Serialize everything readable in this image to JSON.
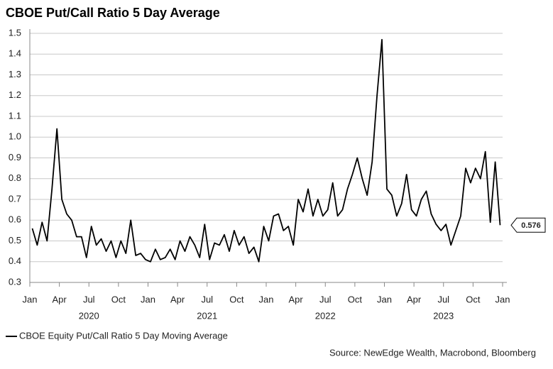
{
  "chart_data": {
    "type": "line",
    "title": "CBOE Put/Call Ratio 5 Day Average",
    "source": "Source: NewEdge Wealth, Macrobond, Bloomberg",
    "x": [
      "2020-01",
      "2020-01",
      "2020-02",
      "2020-02",
      "2020-03",
      "2020-03",
      "2020-04",
      "2020-04",
      "2020-05",
      "2020-05",
      "2020-06",
      "2020-06",
      "2020-07",
      "2020-07",
      "2020-08",
      "2020-08",
      "2020-09",
      "2020-09",
      "2020-10",
      "2020-10",
      "2020-11",
      "2020-11",
      "2020-12",
      "2020-12",
      "2021-01",
      "2021-01",
      "2021-02",
      "2021-02",
      "2021-03",
      "2021-03",
      "2021-04",
      "2021-04",
      "2021-05",
      "2021-05",
      "2021-06",
      "2021-06",
      "2021-07",
      "2021-07",
      "2021-08",
      "2021-08",
      "2021-09",
      "2021-09",
      "2021-10",
      "2021-10",
      "2021-11",
      "2021-11",
      "2021-12",
      "2021-12",
      "2022-01",
      "2022-01",
      "2022-02",
      "2022-02",
      "2022-03",
      "2022-03",
      "2022-04",
      "2022-04",
      "2022-05",
      "2022-05",
      "2022-06",
      "2022-06",
      "2022-07",
      "2022-07",
      "2022-08",
      "2022-08",
      "2022-09",
      "2022-09",
      "2022-10",
      "2022-10",
      "2022-11",
      "2022-11",
      "2022-12",
      "2022-12",
      "2023-01",
      "2023-01",
      "2023-02",
      "2023-02",
      "2023-03",
      "2023-03",
      "2023-04",
      "2023-04",
      "2023-05",
      "2023-05",
      "2023-06",
      "2023-06",
      "2023-07",
      "2023-07",
      "2023-08",
      "2023-08",
      "2023-09",
      "2023-09",
      "2023-10",
      "2023-10",
      "2023-11",
      "2023-11",
      "2023-12",
      "2023-12"
    ],
    "series": [
      {
        "name": "CBOE Equity Put/Call Ratio 5 Day Moving Average",
        "color": "#000000",
        "values": [
          0.56,
          0.48,
          0.59,
          0.5,
          0.75,
          1.04,
          0.7,
          0.63,
          0.6,
          0.52,
          0.52,
          0.42,
          0.57,
          0.48,
          0.51,
          0.45,
          0.5,
          0.42,
          0.5,
          0.44,
          0.6,
          0.43,
          0.44,
          0.41,
          0.4,
          0.46,
          0.41,
          0.42,
          0.46,
          0.41,
          0.5,
          0.45,
          0.52,
          0.48,
          0.42,
          0.58,
          0.41,
          0.49,
          0.48,
          0.53,
          0.45,
          0.55,
          0.48,
          0.52,
          0.44,
          0.47,
          0.4,
          0.57,
          0.5,
          0.62,
          0.63,
          0.55,
          0.57,
          0.48,
          0.7,
          0.64,
          0.75,
          0.62,
          0.7,
          0.62,
          0.65,
          0.78,
          0.62,
          0.65,
          0.75,
          0.82,
          0.9,
          0.8,
          0.72,
          0.88,
          1.2,
          1.47,
          0.75,
          0.72,
          0.62,
          0.68,
          0.82,
          0.65,
          0.62,
          0.7,
          0.74,
          0.63,
          0.58,
          0.55,
          0.58,
          0.48,
          0.55,
          0.62,
          0.85,
          0.78,
          0.85,
          0.8,
          0.93,
          0.59,
          0.88,
          0.576
        ]
      }
    ],
    "xlim": [
      "2020-01",
      "2024-01"
    ],
    "xticks": [
      {
        "value": "2020-01",
        "label": "Jan"
      },
      {
        "value": "2020-04",
        "label": "Apr"
      },
      {
        "value": "2020-07",
        "label": "Jul"
      },
      {
        "value": "2020-10",
        "label": "Oct"
      },
      {
        "value": "2021-01",
        "label": "Jan"
      },
      {
        "value": "2021-04",
        "label": "Apr"
      },
      {
        "value": "2021-07",
        "label": "Jul"
      },
      {
        "value": "2021-10",
        "label": "Oct"
      },
      {
        "value": "2022-01",
        "label": "Jan"
      },
      {
        "value": "2022-04",
        "label": "Apr"
      },
      {
        "value": "2022-07",
        "label": "Jul"
      },
      {
        "value": "2022-10",
        "label": "Oct"
      },
      {
        "value": "2023-01",
        "label": "Jan"
      },
      {
        "value": "2023-04",
        "label": "Apr"
      },
      {
        "value": "2023-07",
        "label": "Jul"
      },
      {
        "value": "2023-10",
        "label": "Oct"
      },
      {
        "value": "2024-01",
        "label": "Jan"
      }
    ],
    "x_year_labels": [
      "2020",
      "2021",
      "2022",
      "2023"
    ],
    "ylim": [
      0.3,
      1.5
    ],
    "yticks": [
      0.3,
      0.4,
      0.5,
      0.6,
      0.7,
      0.8,
      0.9,
      {
        "value": 1,
        "label": "1.0"
      },
      1.1,
      1.2,
      1.3,
      1.4,
      1.5
    ],
    "grid": true,
    "legend": "bottom-left"
  }
}
